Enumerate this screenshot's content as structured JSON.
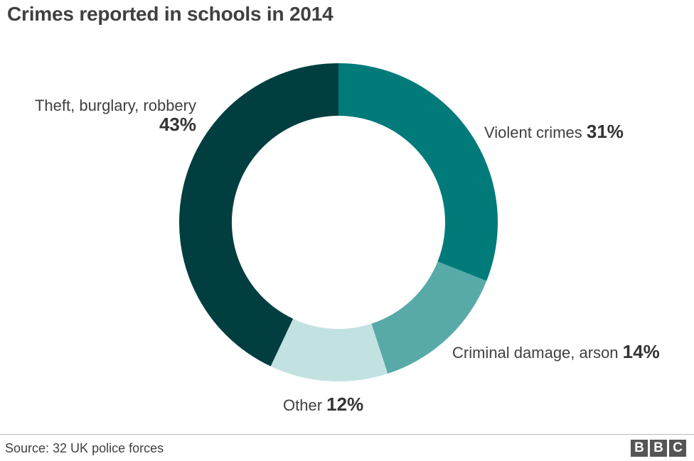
{
  "chart_data": {
    "type": "pie",
    "title": "Crimes reported in schools in 2014",
    "labels": [
      "Violent crimes",
      "Criminal damage, arson",
      "Other",
      "Theft, burglary, robbery"
    ],
    "values": [
      31,
      14,
      12,
      43
    ],
    "value_labels": [
      "31%",
      "14%",
      "12%",
      "43%"
    ],
    "colors": [
      "#017a7a",
      "#58aaa8",
      "#c2e2e1",
      "#003e3f"
    ],
    "donut": true,
    "source": "Source: 32 UK police forces"
  },
  "logo": {
    "letters": [
      "B",
      "B",
      "C"
    ]
  }
}
